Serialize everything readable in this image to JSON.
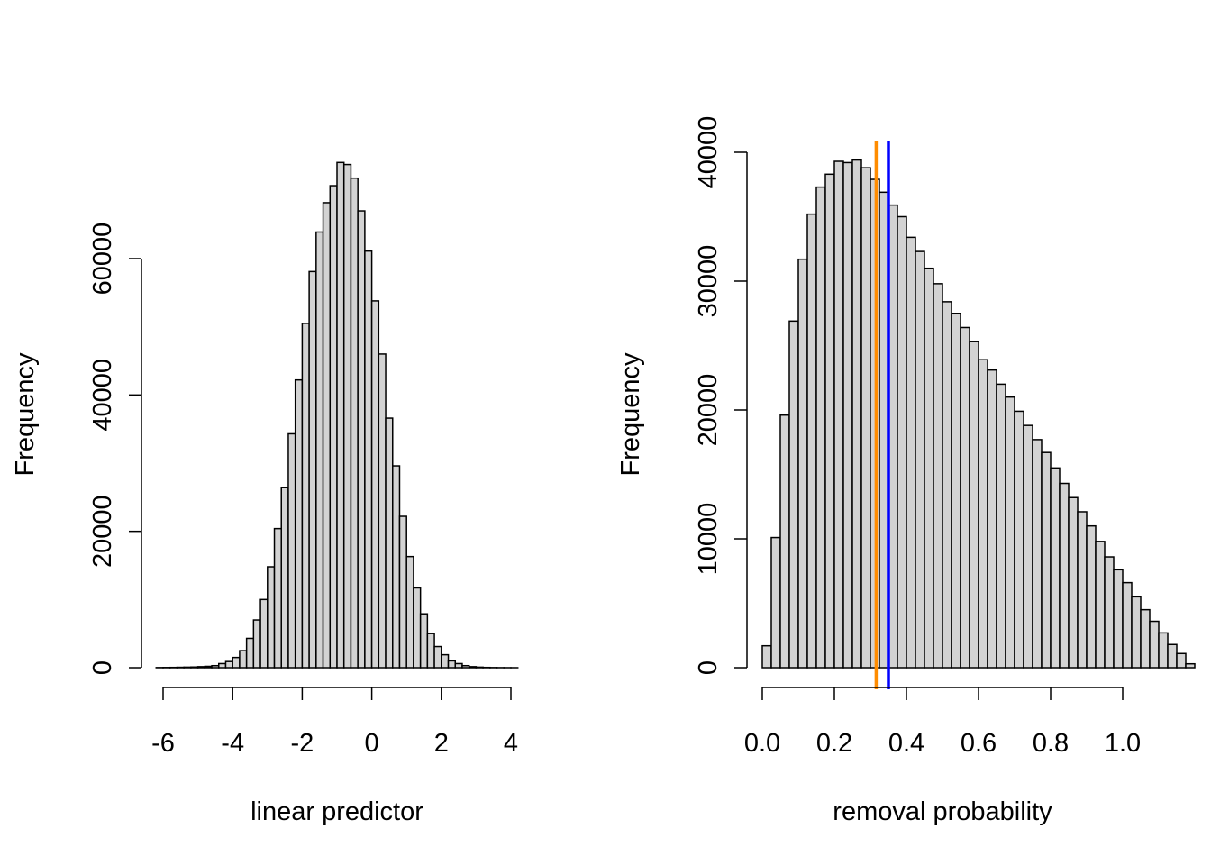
{
  "chart_data": [
    {
      "type": "bar",
      "subtype": "histogram",
      "xlabel": "linear predictor",
      "ylabel": "Frequency",
      "xlim": [
        -6,
        4.2
      ],
      "ylim": [
        0,
        74000
      ],
      "xticks": [
        -6,
        -4,
        -2,
        0,
        2,
        4
      ],
      "xtick_labels": [
        "-6",
        "-4",
        "-2",
        "0",
        "2",
        "4"
      ],
      "yticks": [
        0,
        20000,
        40000,
        60000
      ],
      "ytick_labels": [
        "0",
        "20000",
        "40000",
        "60000"
      ],
      "bin_start": -6.2,
      "bin_width": 0.2,
      "values": [
        20,
        30,
        40,
        60,
        80,
        100,
        150,
        200,
        300,
        600,
        900,
        1500,
        2500,
        4300,
        7000,
        10000,
        14800,
        20400,
        26400,
        34300,
        42200,
        50500,
        58100,
        63900,
        68200,
        70700,
        74100,
        73800,
        71800,
        67000,
        61100,
        53800,
        46000,
        36600,
        29600,
        22200,
        16300,
        11700,
        7900,
        5000,
        3100,
        1900,
        1000,
        600,
        300,
        150,
        80,
        40,
        20,
        10,
        5,
        2
      ],
      "bar_color": "#d3d3d3",
      "grid": false
    },
    {
      "type": "bar",
      "subtype": "histogram",
      "xlabel": "removal probability",
      "ylabel": "Frequency",
      "xlim": [
        0,
        1
      ],
      "ylim": [
        0,
        40000
      ],
      "xticks": [
        0,
        0.2,
        0.4,
        0.6,
        0.8,
        1
      ],
      "xtick_labels": [
        "0.0",
        "0.2",
        "0.4",
        "0.6",
        "0.8",
        "1.0"
      ],
      "yticks": [
        0,
        10000,
        20000,
        30000,
        40000
      ],
      "ytick_labels": [
        "0",
        "10000",
        "20000",
        "30000",
        "40000"
      ],
      "bin_start": 0,
      "bin_width": 0.025,
      "values": [
        1700,
        10100,
        19600,
        26900,
        31700,
        35200,
        37300,
        38300,
        39300,
        39200,
        39400,
        38800,
        37900,
        36900,
        35900,
        35000,
        33400,
        32300,
        31000,
        29800,
        28400,
        27500,
        26400,
        25300,
        23900,
        23100,
        22000,
        21000,
        19900,
        18800,
        17700,
        16700,
        15500,
        14300,
        13200,
        12100,
        11000,
        9800,
        8600,
        7600,
        6600,
        5500,
        4500,
        3600,
        2700,
        1800,
        1100,
        300
      ],
      "bar_color": "#d3d3d3",
      "reference_lines": [
        {
          "x": 0.316,
          "color": "#ff8c00"
        },
        {
          "x": 0.35,
          "color": "#0000ff"
        }
      ],
      "grid": false
    }
  ]
}
